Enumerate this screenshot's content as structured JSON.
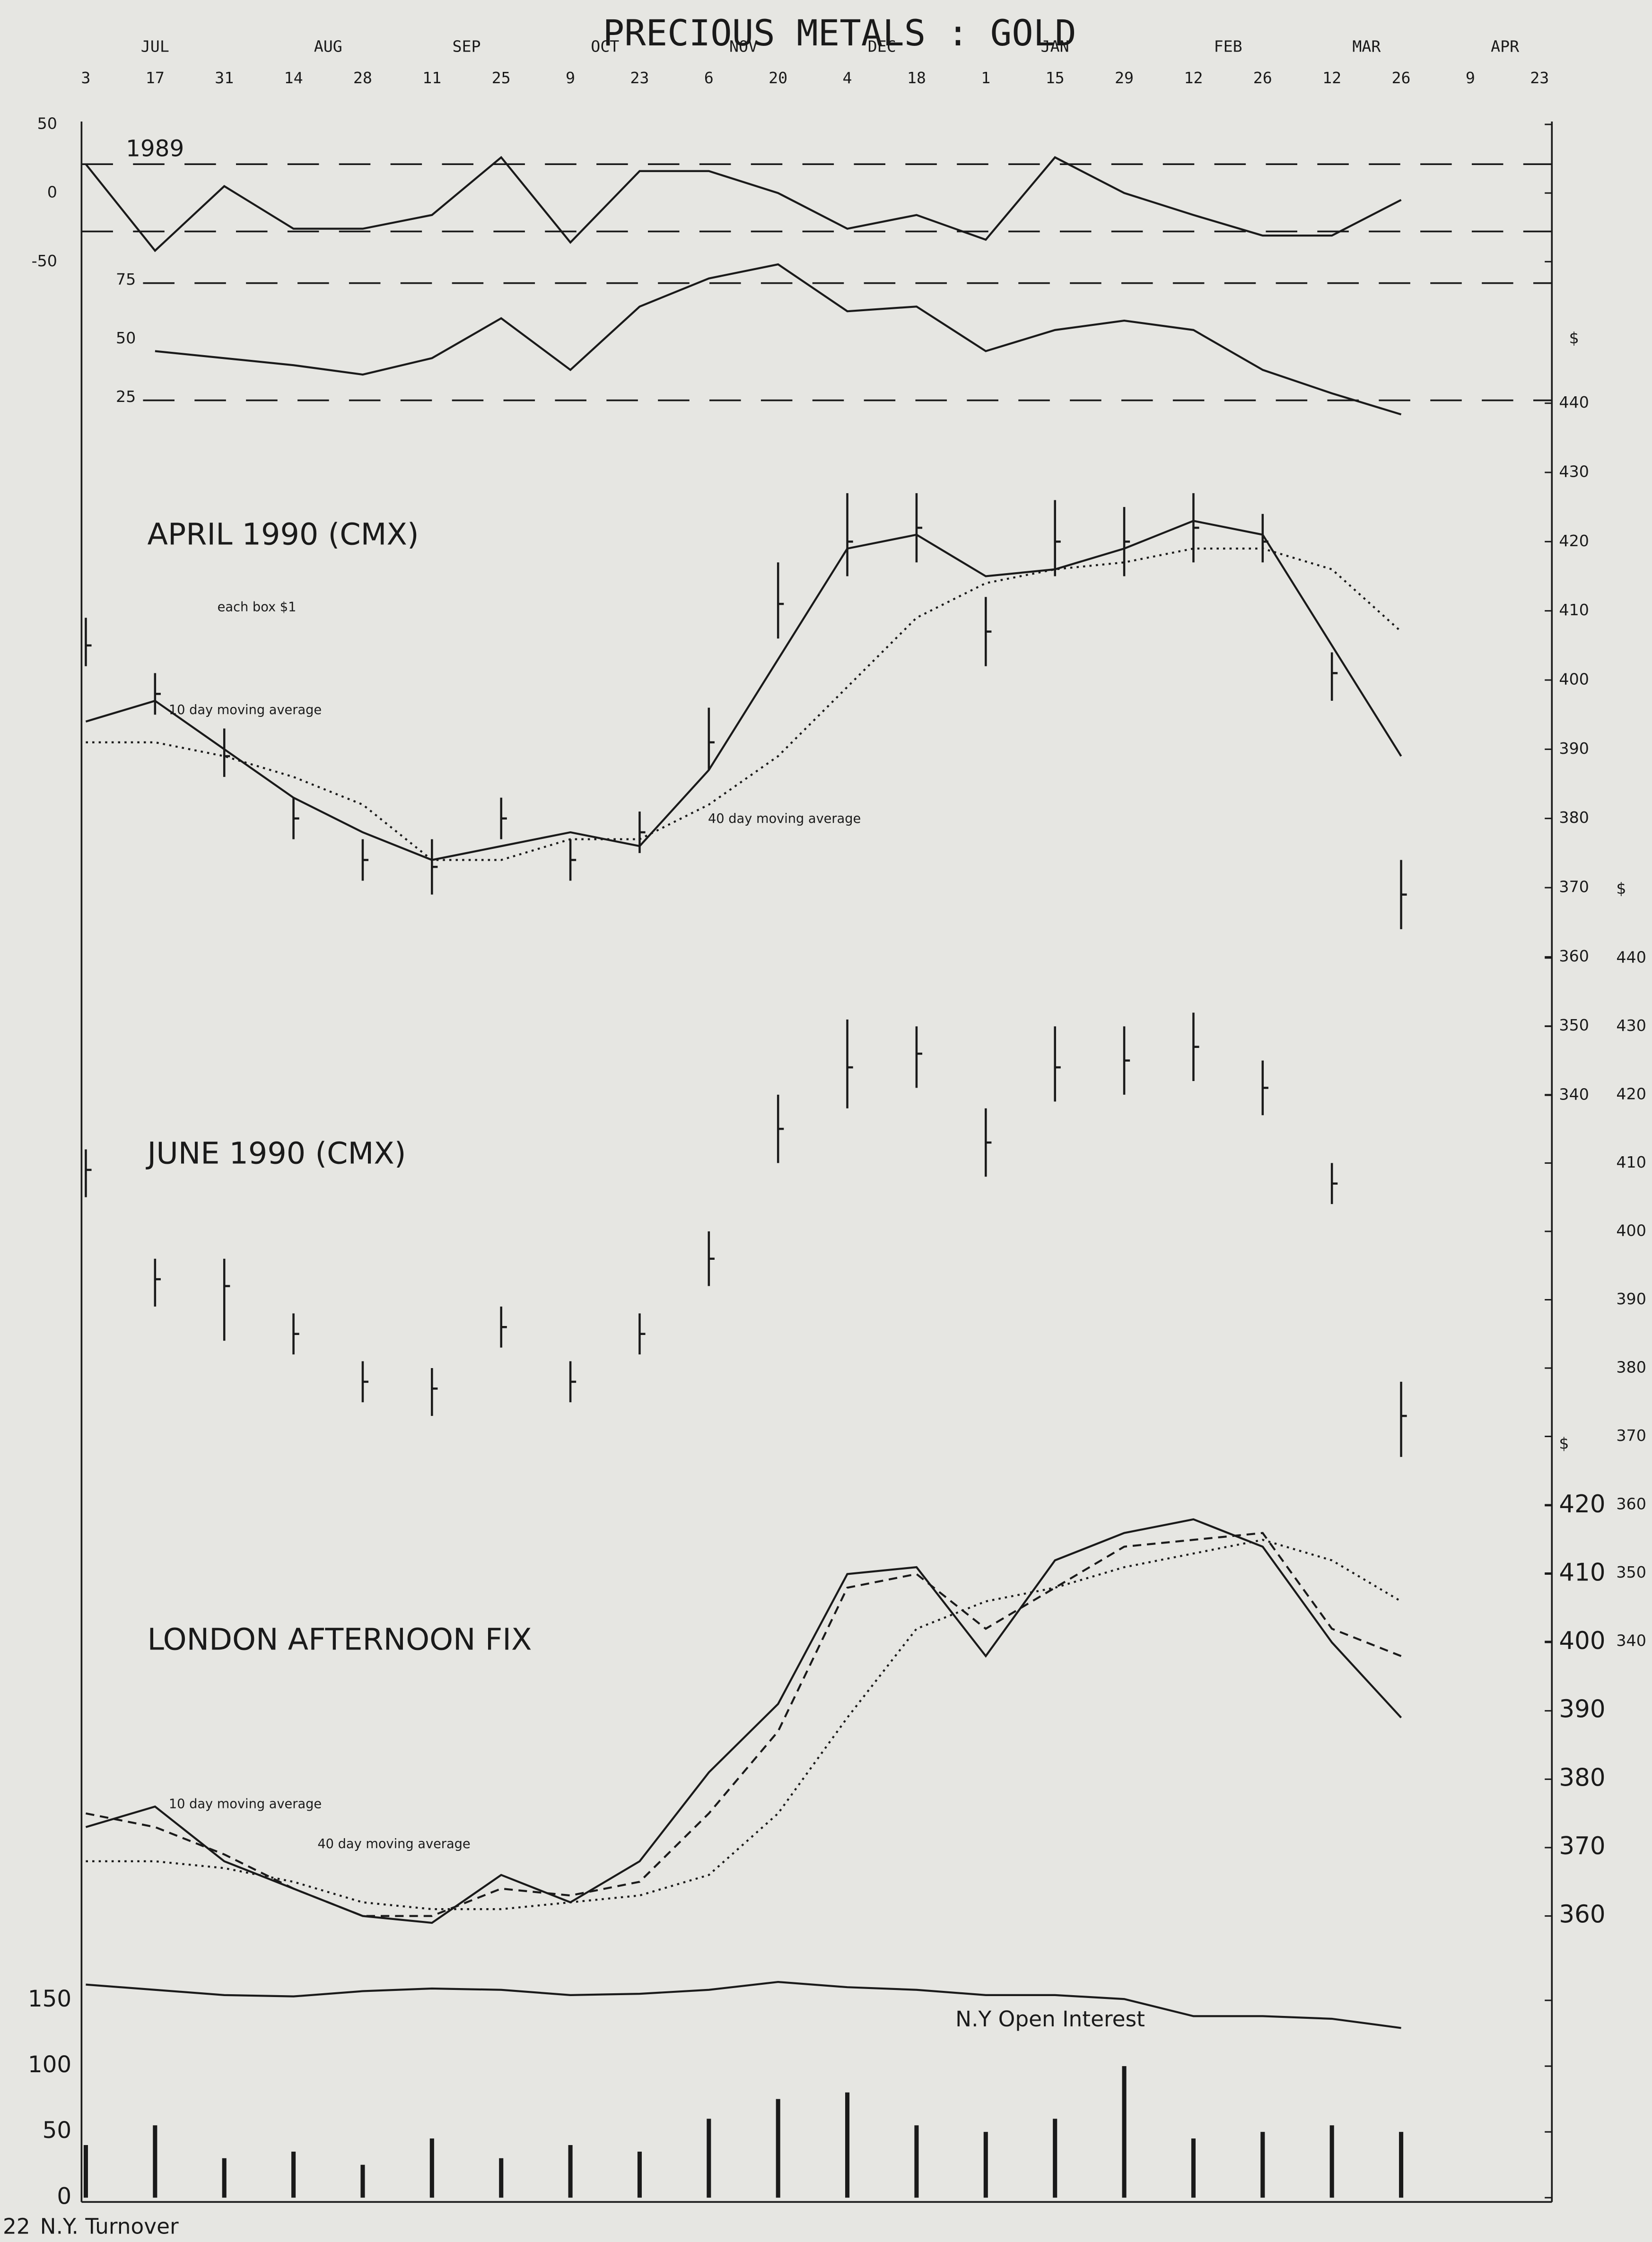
{
  "page_number": "22",
  "color": "#1a1a1a",
  "chart_data": [
    {
      "type": "line",
      "title": "PRECIOUS METALS : GOLD",
      "subtitle": "1989",
      "months": [
        "JUL",
        "AUG",
        "SEP",
        "OCT",
        "NOV",
        "DEC",
        "JAN",
        "FEB",
        "MAR",
        "APR"
      ],
      "categories": [
        "3",
        "17",
        "31",
        "14",
        "28",
        "11",
        "25",
        "9",
        "23",
        "6",
        "20",
        "4",
        "18",
        "1",
        "15",
        "29",
        "12",
        "26",
        "12",
        "26",
        "9",
        "23"
      ],
      "ylim": [
        -50,
        50
      ],
      "yticks": [
        -50,
        0,
        50
      ],
      "levels": [
        21,
        -28
      ],
      "y2lim": [
        25,
        75
      ],
      "y2ticks": [
        25,
        50,
        75
      ],
      "y2levels": [
        25,
        75
      ],
      "series": [
        {
          "values": [
            21,
            -42,
            5,
            -26,
            -26,
            -16,
            26,
            -36,
            16,
            16,
            0,
            -26,
            -16,
            -34,
            26,
            0,
            -16,
            -31,
            -31,
            -5,
            null,
            null
          ],
          "dash": "solid"
        },
        {
          "values": [
            null,
            46,
            43,
            40,
            36,
            43,
            60,
            38,
            65,
            77,
            83,
            63,
            65,
            46,
            55,
            59,
            55,
            38,
            28,
            19,
            null,
            null
          ],
          "dash": "solid",
          "axis": "y2"
        }
      ]
    },
    {
      "type": "hlc",
      "title": "APRIL 1990 (CMX)",
      "annotation": "each box  $1",
      "ylabel": "$",
      "ylim": [
        340,
        440
      ],
      "yticks": [
        340,
        350,
        360,
        370,
        380,
        390,
        400,
        410,
        420,
        430,
        440
      ],
      "high": [
        409,
        401,
        393,
        383,
        377,
        377,
        383,
        377,
        381,
        396,
        417,
        427,
        427,
        412,
        426,
        425,
        427,
        424,
        404,
        374,
        null,
        null
      ],
      "low": [
        402,
        395,
        386,
        377,
        371,
        369,
        377,
        371,
        375,
        387,
        406,
        415,
        417,
        402,
        415,
        415,
        417,
        417,
        397,
        364,
        null,
        null
      ],
      "close": [
        405,
        398,
        389,
        380,
        374,
        373,
        380,
        374,
        378,
        391,
        411,
        420,
        422,
        407,
        420,
        420,
        422,
        420,
        401,
        369,
        null,
        null
      ],
      "series": [
        {
          "name": "10 day moving average",
          "dash": "solid",
          "values": [
            394,
            397,
            390,
            383,
            378,
            374,
            376,
            378,
            376,
            387,
            403,
            419,
            421,
            415,
            416,
            419,
            423,
            421,
            405,
            389,
            null,
            null
          ]
        },
        {
          "name": "40 day moving average",
          "dash": "dotted",
          "values": [
            391,
            391,
            389,
            386,
            382,
            374,
            374,
            377,
            377,
            382,
            389,
            399,
            409,
            414,
            416,
            417,
            419,
            419,
            416,
            407,
            null,
            null
          ]
        }
      ]
    },
    {
      "type": "hlc",
      "title": "JUNE 1990 (CMX)",
      "ylabel": "$",
      "ylim": [
        340,
        440
      ],
      "yticks": [
        340,
        350,
        360,
        370,
        380,
        390,
        400,
        410,
        420,
        430,
        440
      ],
      "high": [
        412,
        396,
        396,
        388,
        381,
        380,
        389,
        381,
        388,
        400,
        420,
        431,
        430,
        418,
        430,
        430,
        432,
        425,
        410,
        378,
        null,
        null
      ],
      "low": [
        405,
        389,
        384,
        382,
        375,
        373,
        383,
        375,
        382,
        392,
        410,
        418,
        421,
        408,
        419,
        420,
        422,
        417,
        404,
        367,
        null,
        null
      ],
      "close": [
        409,
        393,
        392,
        385,
        378,
        377,
        386,
        378,
        385,
        396,
        415,
        424,
        426,
        413,
        424,
        425,
        427,
        421,
        407,
        373,
        null,
        null
      ],
      "series": []
    },
    {
      "type": "line",
      "title": "LONDON AFTERNOON FIX",
      "ylabel": "$",
      "ylim": [
        360,
        420
      ],
      "yticks": [
        360,
        370,
        380,
        390,
        400,
        410,
        420
      ],
      "series": [
        {
          "dash": "solid",
          "values": [
            373,
            376,
            368,
            364,
            360,
            359,
            366,
            362,
            368,
            381,
            391,
            410,
            411,
            398,
            412,
            416,
            418,
            414,
            400,
            389,
            null,
            null
          ]
        },
        {
          "name": "10 day moving average",
          "dash": "dashed",
          "values": [
            375,
            373,
            369,
            364,
            360,
            360,
            364,
            363,
            365,
            375,
            387,
            408,
            410,
            402,
            408,
            414,
            415,
            416,
            402,
            398,
            null,
            null
          ]
        },
        {
          "name": "40 day moving average",
          "dash": "dotted",
          "values": [
            368,
            368,
            367,
            365,
            362,
            361,
            361,
            362,
            363,
            366,
            375,
            389,
            402,
            406,
            408,
            411,
            413,
            415,
            412,
            406,
            null,
            null
          ]
        }
      ]
    },
    {
      "type": "bar",
      "ylim": [
        0,
        175
      ],
      "yticks": [
        0,
        50,
        100,
        150
      ],
      "series": [
        {
          "name": "N.Y Open Interest",
          "dash": "solid",
          "values": [
            162,
            158,
            154,
            153,
            157,
            159,
            158,
            154,
            155,
            158,
            164,
            160,
            158,
            154,
            154,
            151,
            138,
            138,
            136,
            129,
            null,
            null
          ]
        },
        {
          "name": "N.Y. Turnover",
          "bars": true,
          "values": [
            40,
            55,
            30,
            35,
            25,
            45,
            30,
            40,
            35,
            60,
            75,
            80,
            55,
            50,
            60,
            100,
            45,
            50,
            55,
            50,
            null,
            null
          ]
        }
      ]
    }
  ]
}
